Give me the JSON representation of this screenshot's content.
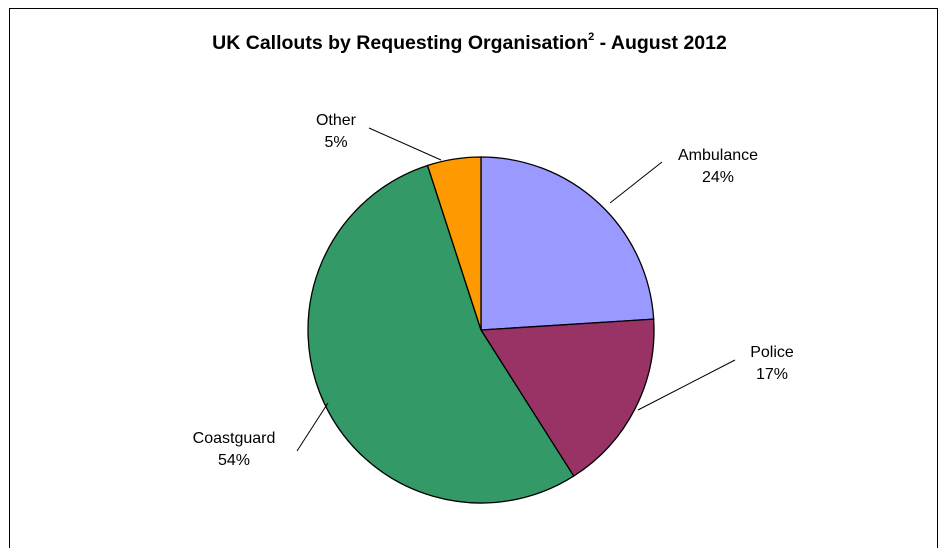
{
  "chart_data": {
    "type": "pie",
    "title": "UK Callouts by Requesting Organisation",
    "title_superscript": "2",
    "title_suffix": " - August 2012",
    "slices": [
      {
        "label": "Ambulance",
        "value": 24,
        "value_label": "24%",
        "color": "#9999ff"
      },
      {
        "label": "Police",
        "value": 17,
        "value_label": "17%",
        "color": "#993366"
      },
      {
        "label": "Coastguard",
        "value": 54,
        "value_label": "54%",
        "color": "#339966"
      },
      {
        "label": "Other",
        "value": 5,
        "value_label": "5%",
        "color": "#ff9900"
      }
    ]
  }
}
